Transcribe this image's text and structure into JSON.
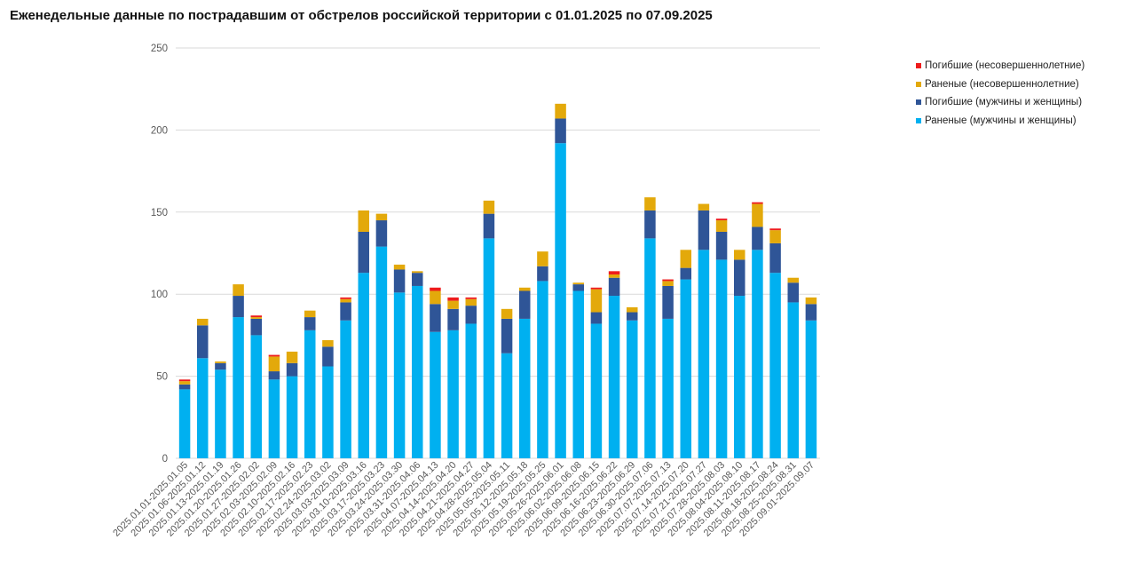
{
  "title": "Еженедельные данные по пострадавшим от обстрелов российской территории с 01.01.2025 по 07.09.2025",
  "colors": {
    "wounded_adult": "#00b0f0",
    "killed_adult": "#2f5597",
    "wounded_minor": "#e3a90b",
    "killed_minor": "#ee1c1c",
    "grid": "#d9d9d9",
    "tick_label": "#595959"
  },
  "legend": [
    {
      "key": "killed_minor",
      "label": "Погибшие (несовершеннолетние)"
    },
    {
      "key": "wounded_minor",
      "label": "Раненые (несовершеннолетние)"
    },
    {
      "key": "killed_adult",
      "label": "Погибшие (мужчины и женщины)"
    },
    {
      "key": "wounded_adult",
      "label": "Раненые (мужчины и женщины)"
    }
  ],
  "chart_data": {
    "type": "bar",
    "stacked": true,
    "title": "Еженедельные данные по пострадавшим от обстрелов российской территории с 01.01.2025 по 07.09.2025",
    "ylim": [
      0,
      250
    ],
    "yticks": [
      0,
      50,
      100,
      150,
      200,
      250
    ],
    "grid": true,
    "legend_position": "top-right",
    "categories": [
      "2025.01.01-2025.01.05",
      "2025.01.06-2025.01.12",
      "2025.01.13-2025.01.19",
      "2025.01.20-2025.01.26",
      "2025.01.27-2025.02.02",
      "2025.02.03-2025.02.09",
      "2025.02.10-2025.02.16",
      "2025.02.17-2025.02.23",
      "2025.02.24-2025.03.02",
      "2025.03.03-2025.03.09",
      "2025.03.10-2025.03.16",
      "2025.03.17-2025.03.23",
      "2025.03.24-2025.03.30",
      "2025.03.31-2025.04.06",
      "2025.04.07-2025.04.13",
      "2025.04.14-2025.04.20",
      "2025.04.21-2025.04.27",
      "2025.04.28-2025.05.04",
      "2025.05.05-2025.05.11",
      "2025.05.12-2025.05.18",
      "2025.05.19-2025.05.25",
      "2025.05.26-2025.06.01",
      "2025.06.02-2025.06.08",
      "2025.06.09-2025.06.15",
      "2025.06.16-2025.06.22",
      "2025.06.23-2025.06.29",
      "2025.06.30-2025.07.06",
      "2025.07.07-2025.07.13",
      "2025.07.14-2025.07.20",
      "2025.07.21-2025.07.27",
      "2025.07.28-2025.08.03",
      "2025.08.04-2025.08.10",
      "2025.08.11-2025.08.17",
      "2025.08.18-2025.08.24",
      "2025.08.25-2025.08.31",
      "2025.09.01-2025.09.07"
    ],
    "bars": [
      [
        42,
        3,
        2,
        1
      ],
      [
        61,
        20,
        4,
        0
      ],
      [
        54,
        4,
        1,
        0
      ],
      [
        86,
        13,
        7,
        0
      ],
      [
        75,
        10,
        1,
        1
      ],
      [
        48,
        5,
        9,
        1
      ],
      [
        50,
        8,
        7,
        0
      ],
      [
        78,
        8,
        4,
        0
      ],
      [
        56,
        12,
        4,
        0
      ],
      [
        84,
        11,
        2,
        1
      ],
      [
        113,
        25,
        13,
        0
      ],
      [
        129,
        16,
        4,
        0
      ],
      [
        101,
        14,
        3,
        0
      ],
      [
        105,
        8,
        1,
        0
      ],
      [
        77,
        17,
        8,
        2
      ],
      [
        78,
        13,
        5,
        2
      ],
      [
        82,
        11,
        4,
        1
      ],
      [
        134,
        15,
        8,
        0
      ],
      [
        64,
        21,
        6,
        0
      ],
      [
        85,
        17,
        2,
        0
      ],
      [
        108,
        9,
        9,
        0
      ],
      [
        192,
        15,
        9,
        0
      ],
      [
        102,
        4,
        1,
        0
      ],
      [
        82,
        7,
        14,
        1
      ],
      [
        99,
        11,
        2,
        2
      ],
      [
        84,
        5,
        3,
        0
      ],
      [
        134,
        17,
        8,
        0
      ],
      [
        85,
        20,
        3,
        1
      ],
      [
        109,
        7,
        11,
        0
      ],
      [
        127,
        24,
        4,
        0
      ],
      [
        121,
        17,
        7,
        1
      ],
      [
        99,
        22,
        6,
        0
      ],
      [
        127,
        14,
        14,
        1
      ],
      [
        113,
        18,
        8,
        1
      ],
      [
        95,
        12,
        3,
        0
      ],
      [
        84,
        10,
        4,
        0
      ]
    ],
    "series": [
      {
        "name": "Раненые (мужчины и женщины)",
        "color_key": "wounded_adult",
        "index": 0
      },
      {
        "name": "Погибшие (мужчины и женщины)",
        "color_key": "killed_adult",
        "index": 1
      },
      {
        "name": "Раненые (несовершеннолетние)",
        "color_key": "wounded_minor",
        "index": 2
      },
      {
        "name": "Погибшие (несовершеннолетние)",
        "color_key": "killed_minor",
        "index": 3
      }
    ]
  }
}
